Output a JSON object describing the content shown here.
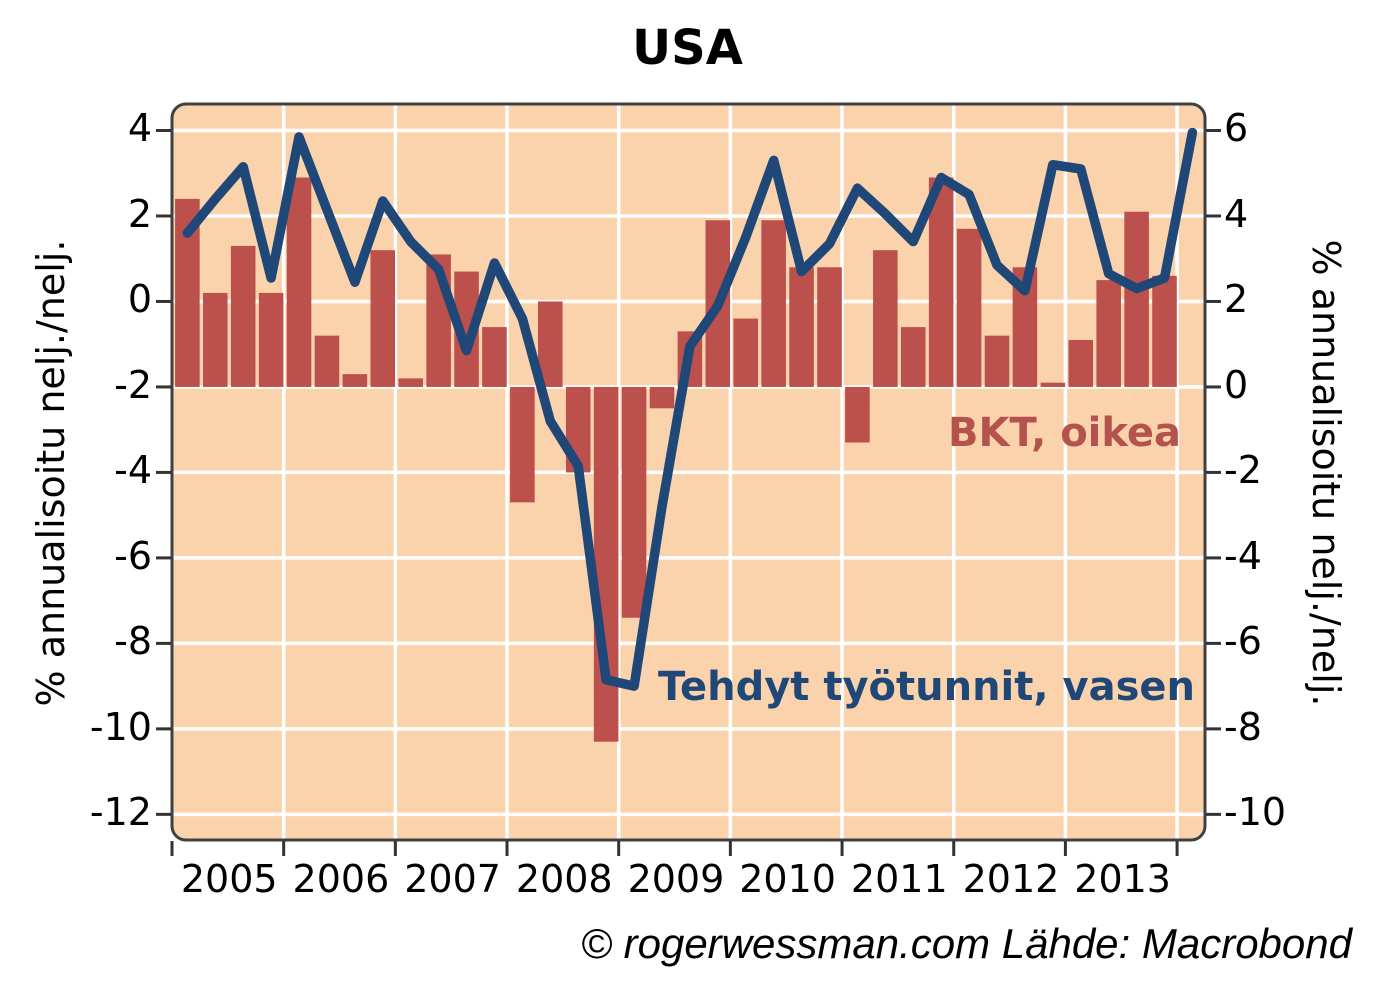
{
  "title": "USA",
  "caption": "© rogerwessman.com Lähde: Macrobond",
  "left_axis": {
    "title": "% annualisoitu nelj./nelj.",
    "ticks": [
      "4",
      "2",
      "0",
      "-2",
      "-4",
      "-6",
      "-8",
      "-10",
      "-12"
    ],
    "range_max": 4.62,
    "range_min": -12.6
  },
  "right_axis": {
    "title": "% annualisoitu nelj./nelj.",
    "ticks": [
      "6",
      "4",
      "2",
      "0",
      "-2",
      "-4",
      "-6",
      "-8",
      "-10"
    ],
    "range_max": 6.62,
    "range_min": -10.6
  },
  "x_axis": {
    "years": [
      "2005",
      "2006",
      "2007",
      "2008",
      "2009",
      "2010",
      "2011",
      "2012",
      "2013"
    ]
  },
  "styles": {
    "plot_bg": "#fad3ac",
    "grid_color": "#ffffff",
    "border_color": "#404040",
    "bar_color": "#bc504d",
    "line_color": "#1f4878"
  },
  "chart_data": {
    "type": "combo bar+line",
    "title": "USA",
    "ylabel_left": "% annualisoitu nelj./nelj.",
    "ylabel_right": "% annualisoitu nelj./nelj.",
    "ylim_left": [
      -12,
      4
    ],
    "ylim_right": [
      -10,
      6
    ],
    "grid": true,
    "x_quarters": [
      "2005Q1",
      "2005Q2",
      "2005Q3",
      "2005Q4",
      "2006Q1",
      "2006Q2",
      "2006Q3",
      "2006Q4",
      "2007Q1",
      "2007Q2",
      "2007Q3",
      "2007Q4",
      "2008Q1",
      "2008Q2",
      "2008Q3",
      "2008Q4",
      "2009Q1",
      "2009Q2",
      "2009Q3",
      "2009Q4",
      "2010Q1",
      "2010Q2",
      "2010Q3",
      "2010Q4",
      "2011Q1",
      "2011Q2",
      "2011Q3",
      "2011Q4",
      "2012Q1",
      "2012Q2",
      "2012Q3",
      "2012Q4",
      "2013Q1",
      "2013Q2",
      "2013Q3",
      "2013Q4",
      "2014Q1"
    ],
    "series": [
      {
        "name": "BKT, oikea",
        "type": "bar",
        "axis": "right",
        "color": "#bc504d",
        "values": [
          4.4,
          2.2,
          3.3,
          2.2,
          4.9,
          1.2,
          0.3,
          3.2,
          0.2,
          3.1,
          2.7,
          1.4,
          -2.7,
          2.0,
          -2.0,
          -8.3,
          -5.4,
          -0.5,
          1.3,
          3.9,
          1.6,
          3.9,
          2.8,
          2.8,
          -1.3,
          3.2,
          1.4,
          4.9,
          3.7,
          1.2,
          2.8,
          0.1,
          1.1,
          2.5,
          4.1,
          2.6
        ]
      },
      {
        "name": "Tehdyt työtunnit, vasen",
        "type": "line",
        "axis": "left",
        "color": "#1f4878",
        "values": [
          1.6,
          2.4,
          3.15,
          0.55,
          3.85,
          2.15,
          0.45,
          2.35,
          1.4,
          0.75,
          -1.15,
          0.9,
          -0.4,
          -2.8,
          -3.85,
          -8.85,
          -9.0,
          -4.8,
          -1.05,
          -0.1,
          1.5,
          3.3,
          0.7,
          1.35,
          2.65,
          2.05,
          1.4,
          2.9,
          2.5,
          0.85,
          0.25,
          3.2,
          3.1,
          0.65,
          0.3,
          0.55,
          3.95
        ]
      }
    ]
  }
}
